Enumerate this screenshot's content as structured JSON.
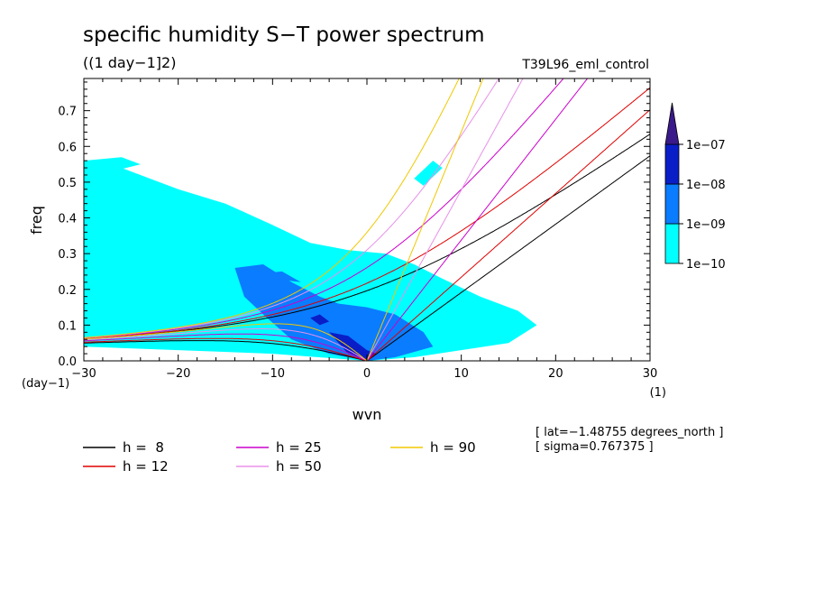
{
  "chart_data": {
    "type": "heatmap",
    "title": "specific humidity S−T power spectrum",
    "units": "((1 day−1]2)",
    "dataset": "T39L96_eml_control",
    "xlabel": "wvn",
    "ylabel": "freq",
    "x_unit_label": "(1)",
    "y_unit_label": "(day−1)",
    "xlim": [
      -30,
      30
    ],
    "ylim": [
      0,
      0.79
    ],
    "x_ticks": [
      "−30",
      "−20",
      "−10",
      "0",
      "10",
      "20",
      "30"
    ],
    "y_ticks": [
      "0.0",
      "0.1",
      "0.2",
      "0.3",
      "0.4",
      "0.5",
      "0.6",
      "0.7"
    ],
    "colorbar": {
      "labels": [
        "1e−07",
        "1e−08",
        "1e−09",
        "1e−10"
      ],
      "levels": [
        1e-10,
        1e-09,
        1e-08,
        1e-07
      ],
      "colors": [
        "#00ffff",
        "#0a7cff",
        "#0a1ec8",
        "#3a1a8a"
      ]
    },
    "annotations": [
      "[ lat=−1.48755 degrees_north ]",
      "[ sigma=0.767375 ]"
    ],
    "series": [
      {
        "name": "h =  8",
        "color": "#000000",
        "h": 8
      },
      {
        "name": "h = 12",
        "color": "#e00000",
        "h": 12
      },
      {
        "name": "h = 25",
        "color": "#cc00cc",
        "h": 25
      },
      {
        "name": "h = 50",
        "color": "#e890e8",
        "h": 50
      },
      {
        "name": "h = 90",
        "color": "#f0c800",
        "h": 90
      }
    ],
    "power_regions": [
      {
        "level": 1,
        "points": [
          [
            -30,
            0.04
          ],
          [
            -30,
            0.55
          ],
          [
            -27,
            0.55
          ],
          [
            -24,
            0.52
          ],
          [
            -20,
            0.48
          ],
          [
            -15,
            0.44
          ],
          [
            -10,
            0.38
          ],
          [
            -6,
            0.33
          ],
          [
            -2,
            0.31
          ],
          [
            2,
            0.3
          ],
          [
            5,
            0.27
          ],
          [
            8,
            0.23
          ],
          [
            12,
            0.18
          ],
          [
            16,
            0.14
          ],
          [
            18,
            0.1
          ],
          [
            15,
            0.05
          ],
          [
            10,
            0.03
          ],
          [
            5,
            0.01
          ],
          [
            0,
            0.0
          ],
          [
            -10,
            0.02
          ],
          [
            -20,
            0.03
          ]
        ]
      },
      {
        "level": 1,
        "points": [
          [
            -30,
            0.56
          ],
          [
            -26,
            0.57
          ],
          [
            -24,
            0.55
          ],
          [
            -27,
            0.53
          ],
          [
            -30,
            0.53
          ]
        ]
      },
      {
        "level": 1,
        "points": [
          [
            5,
            0.51
          ],
          [
            7,
            0.56
          ],
          [
            8,
            0.54
          ],
          [
            6,
            0.49
          ]
        ]
      },
      {
        "level": 2,
        "points": [
          [
            -14,
            0.26
          ],
          [
            -11,
            0.27
          ],
          [
            -8,
            0.22
          ],
          [
            -5,
            0.18
          ],
          [
            -3,
            0.16
          ],
          [
            0,
            0.15
          ],
          [
            3,
            0.13
          ],
          [
            6,
            0.08
          ],
          [
            7,
            0.04
          ],
          [
            3,
            0.01
          ],
          [
            0,
            0.0
          ],
          [
            -4,
            0.02
          ],
          [
            -8,
            0.06
          ],
          [
            -11,
            0.13
          ],
          [
            -13,
            0.18
          ]
        ]
      },
      {
        "level": 2,
        "points": [
          [
            -10,
            0.23
          ],
          [
            -13,
            0.24
          ],
          [
            -9,
            0.25
          ],
          [
            -7,
            0.22
          ]
        ]
      },
      {
        "level": 3,
        "points": [
          [
            -4,
            0.08
          ],
          [
            -2,
            0.07
          ],
          [
            0,
            0.03
          ],
          [
            1,
            0.02
          ],
          [
            0,
            0.0
          ],
          [
            -2,
            0.02
          ],
          [
            -3,
            0.05
          ]
        ]
      },
      {
        "level": 3,
        "points": [
          [
            -6,
            0.12
          ],
          [
            -5,
            0.13
          ],
          [
            -4,
            0.11
          ],
          [
            -5,
            0.1
          ]
        ]
      }
    ]
  }
}
